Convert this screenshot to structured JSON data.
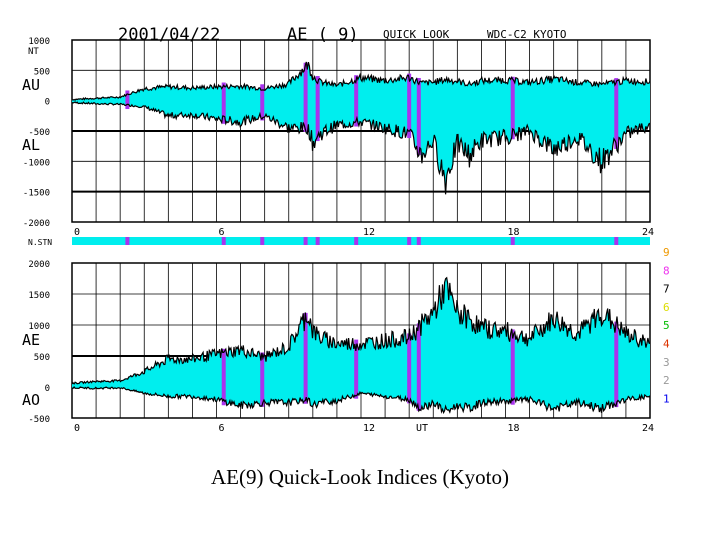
{
  "header": {
    "date": "2001/04/22",
    "index": "AE ( 9)",
    "mode": "QUICK LOOK",
    "center": "WDC-C2 KYOTO"
  },
  "caption": "AE(9) Quick-Look Indices (Kyoto)",
  "colors": {
    "fill": "#00eeee",
    "marker": "#aa33ee",
    "stn_bar": "#00eeee",
    "line": "#000000"
  },
  "chart_data": [
    {
      "type": "area",
      "name": "AU/AL panel",
      "unit_label": "NT",
      "series_labels": [
        "AU",
        "AL"
      ],
      "ylim": [
        -2000,
        1000
      ],
      "yticks": [
        "1000",
        "500",
        "0",
        "-500",
        "-1000",
        "-1500",
        "-2000"
      ],
      "xlim": [
        0,
        24
      ],
      "xticks": [
        "0",
        "6",
        "12",
        "18",
        "24"
      ],
      "marker_hours": [
        2.3,
        6.3,
        7.9,
        9.7,
        10.2,
        11.8,
        14.0,
        14.4,
        18.3,
        22.6
      ],
      "hours": [
        0,
        1,
        2,
        3,
        4,
        5,
        6,
        7,
        8,
        9,
        9.8,
        10,
        10.3,
        11,
        12,
        13,
        14,
        14.5,
        15,
        15.5,
        16,
        16.5,
        17,
        18,
        19,
        20,
        21,
        22,
        23,
        24
      ],
      "au": [
        20,
        40,
        60,
        200,
        230,
        210,
        230,
        240,
        200,
        280,
        600,
        400,
        310,
        250,
        380,
        330,
        380,
        290,
        300,
        350,
        320,
        270,
        330,
        340,
        300,
        360,
        300,
        270,
        330,
        310
      ],
      "al": [
        -30,
        -50,
        -60,
        -100,
        -250,
        -230,
        -300,
        -350,
        -250,
        -450,
        -450,
        -700,
        -550,
        -400,
        -350,
        -450,
        -550,
        -900,
        -650,
        -1300,
        -700,
        -900,
        -650,
        -600,
        -500,
        -800,
        -600,
        -1000,
        -550,
        -400
      ]
    },
    {
      "type": "area",
      "name": "AE/AO panel",
      "series_labels": [
        "AE",
        "AO"
      ],
      "ylim": [
        -500,
        2000
      ],
      "yticks": [
        "2000",
        "1500",
        "1000",
        "500",
        "0",
        "-500"
      ],
      "xlim": [
        0,
        24
      ],
      "xticks": [
        "0",
        "6",
        "12",
        "UT",
        "18",
        "24"
      ],
      "marker_hours": [
        6.3,
        7.9,
        9.7,
        11.8,
        14.0,
        14.4,
        18.3,
        22.6
      ],
      "hours": [
        0,
        1,
        2,
        3,
        4,
        5,
        6,
        7,
        8,
        9,
        9.8,
        10,
        10.3,
        11,
        12,
        13,
        14,
        14.5,
        15,
        15.5,
        16,
        16.5,
        17,
        18,
        19,
        20,
        21,
        22,
        23,
        24
      ],
      "ae": [
        60,
        90,
        100,
        250,
        450,
        450,
        530,
        600,
        480,
        650,
        1200,
        900,
        800,
        700,
        700,
        750,
        800,
        1000,
        1200,
        1600,
        1200,
        1100,
        950,
        900,
        780,
        1100,
        850,
        1200,
        850,
        700
      ],
      "ao": [
        -10,
        -20,
        -10,
        -100,
        -150,
        -150,
        -200,
        -300,
        -250,
        -250,
        -200,
        -300,
        -250,
        -220,
        -100,
        -150,
        -200,
        -350,
        -250,
        -400,
        -300,
        -350,
        -250,
        -230,
        -200,
        -350,
        -250,
        -350,
        -200,
        -150
      ]
    },
    {
      "type": "bar",
      "name": "N of STN",
      "label": "N.STN",
      "scale_levels": [
        "9",
        "8",
        "7",
        "6",
        "5",
        "4",
        "3",
        "2",
        "1"
      ],
      "scale_colors": [
        "#ee9900",
        "#ee33ee",
        "#000000",
        "#dddd00",
        "#00bb00",
        "#dd3300",
        "#999999",
        "#999999",
        "#0000ee"
      ],
      "drop_hours": [
        2.3,
        6.3,
        7.9,
        9.7,
        10.2,
        11.8,
        14.0,
        14.4,
        18.3,
        22.6
      ]
    }
  ]
}
